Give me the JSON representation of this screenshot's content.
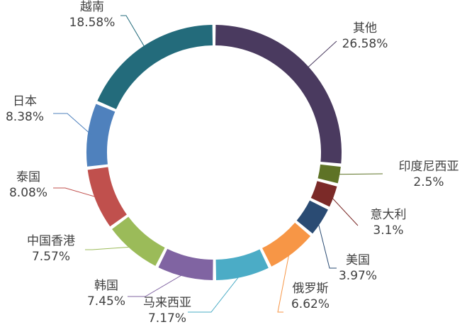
{
  "chart_data": {
    "type": "pie",
    "variant": "donut",
    "start_position": "top",
    "direction": "clockwise",
    "slices": [
      {
        "label": "其他",
        "value": 26.58,
        "percent_text": "26.58%",
        "color": "#4a3a5f"
      },
      {
        "label": "印度尼西亚",
        "value": 2.5,
        "percent_text": "2.5%",
        "color": "#5e7326"
      },
      {
        "label": "意大利",
        "value": 3.1,
        "percent_text": "3.1%",
        "color": "#7b2a28"
      },
      {
        "label": "美国",
        "value": 3.97,
        "percent_text": "3.97%",
        "color": "#2a4b73"
      },
      {
        "label": "俄罗斯",
        "value": 6.62,
        "percent_text": "6.62%",
        "color": "#f79646"
      },
      {
        "label": "马来西亚",
        "value": 7.17,
        "percent_text": "7.17%",
        "color": "#4bacc6"
      },
      {
        "label": "韩国",
        "value": 7.45,
        "percent_text": "7.45%",
        "color": "#8064a2"
      },
      {
        "label": "中国香港",
        "value": 7.57,
        "percent_text": "7.57%",
        "color": "#9bbb59"
      },
      {
        "label": "泰国",
        "value": 8.08,
        "percent_text": "8.08%",
        "color": "#c0504d"
      },
      {
        "label": "日本",
        "value": 8.38,
        "percent_text": "8.38%",
        "color": "#4f81bd"
      },
      {
        "label": "越南",
        "value": 18.58,
        "percent_text": "18.58%",
        "color": "#236b7b"
      }
    ]
  }
}
